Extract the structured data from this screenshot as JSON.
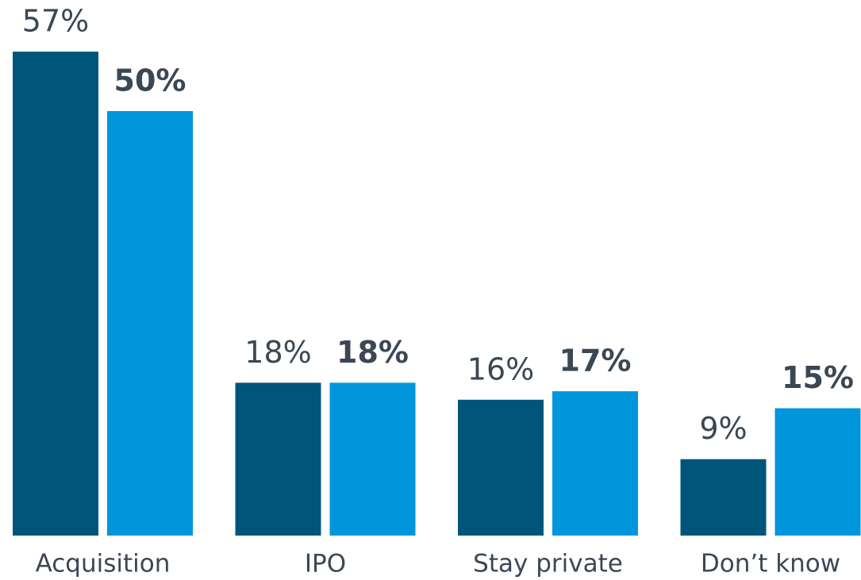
{
  "chart_data": {
    "type": "bar",
    "categories": [
      "Acquisition",
      "IPO",
      "Stay private",
      "Don’t know"
    ],
    "series": [
      {
        "color": "#00557a",
        "values": [
          57,
          18,
          16,
          9
        ],
        "value_labels": [
          "57%",
          "18%",
          "16%",
          "9%"
        ]
      },
      {
        "color": "#0096dc",
        "values": [
          50,
          18,
          17,
          15
        ],
        "value_labels": [
          "50%",
          "18%",
          "17%",
          "15%"
        ]
      }
    ]
  }
}
